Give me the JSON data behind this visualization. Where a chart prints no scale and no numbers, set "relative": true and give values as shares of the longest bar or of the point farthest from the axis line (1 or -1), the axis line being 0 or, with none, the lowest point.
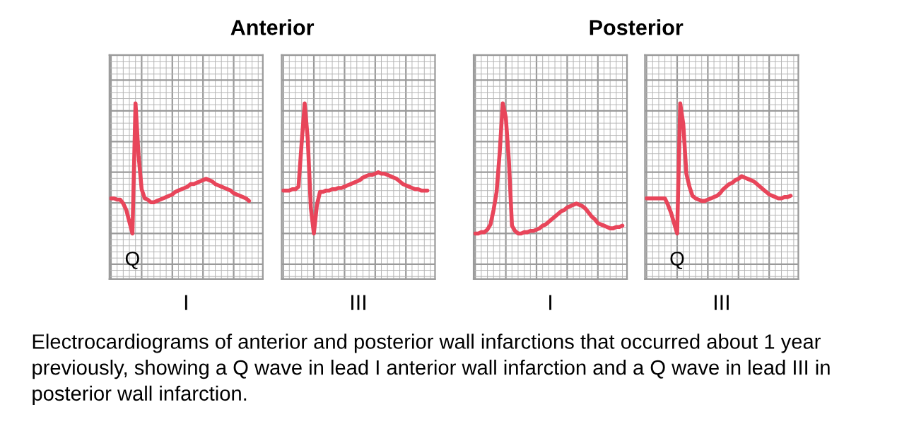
{
  "chart_data": [
    {
      "type": "line",
      "relative": true,
      "title": "Anterior",
      "xlabel": "I",
      "color": "#e8455a",
      "grid": true,
      "line_style": "solid",
      "categories": [
        null,
        null,
        null,
        null,
        null,
        null,
        null,
        null,
        null,
        null,
        null,
        null,
        null,
        null,
        null,
        null,
        null,
        null,
        null,
        null,
        null,
        null,
        null,
        null,
        null,
        null,
        null,
        null,
        null,
        null,
        null,
        null,
        null,
        null,
        null,
        null,
        null,
        null,
        null,
        null,
        null,
        null,
        null,
        null,
        null,
        null
      ],
      "values": [
        0.27,
        0.27,
        0.26,
        0.26,
        0.23,
        0.18,
        0.09,
        0,
        1,
        0.6,
        0.34,
        0.27,
        0.26,
        0.24,
        0.24,
        0.25,
        0.26,
        0.27,
        0.28,
        0.29,
        0.3,
        0.32,
        0.33,
        0.34,
        0.35,
        0.36,
        0.38,
        0.38,
        0.39,
        0.4,
        0.41,
        0.42,
        0.41,
        0.4,
        0.38,
        0.37,
        0.36,
        0.35,
        0.34,
        0.33,
        0.31,
        0.3,
        0.29,
        0.28,
        0.27,
        0.25
      ],
      "annotations": [
        {
          "text": "Q",
          "y": 0
        }
      ]
    },
    {
      "type": "line",
      "relative": true,
      "xlabel": "III",
      "color": "#e8455a",
      "grid": true,
      "line_style": "solid",
      "categories": [
        null,
        null,
        null,
        null,
        null,
        null,
        null,
        null,
        null,
        null,
        null,
        null,
        null,
        null,
        null,
        null,
        null,
        null,
        null,
        null,
        null,
        null,
        null,
        null,
        null,
        null,
        null,
        null,
        null,
        null,
        null,
        null,
        null,
        null,
        null,
        null,
        null,
        null,
        null,
        null,
        null,
        null,
        null,
        null,
        null,
        null,
        null,
        null
      ],
      "values": [
        0.33,
        0.33,
        0.33,
        0.34,
        0.34,
        0.36,
        0.69,
        1,
        0.73,
        0.2,
        0,
        0.22,
        0.32,
        0.32,
        0.33,
        0.33,
        0.34,
        0.34,
        0.35,
        0.35,
        0.36,
        0.37,
        0.38,
        0.39,
        0.4,
        0.41,
        0.43,
        0.44,
        0.45,
        0.45,
        0.46,
        0.47,
        0.46,
        0.46,
        0.45,
        0.44,
        0.43,
        0.42,
        0.4,
        0.38,
        0.37,
        0.36,
        0.35,
        0.34,
        0.34,
        0.33,
        0.33,
        0.33
      ]
    },
    {
      "type": "line",
      "relative": true,
      "title": "Posterior",
      "xlabel": "I",
      "color": "#e8455a",
      "grid": true,
      "line_style": "solid",
      "categories": [
        null,
        null,
        null,
        null,
        null,
        null,
        null,
        null,
        null,
        null,
        null,
        null,
        null,
        null,
        null,
        null,
        null,
        null,
        null,
        null,
        null,
        null,
        null,
        null,
        null,
        null,
        null,
        null,
        null,
        null,
        null,
        null,
        null,
        null,
        null,
        null,
        null,
        null,
        null,
        null,
        null,
        null,
        null,
        null,
        null,
        null,
        null,
        null,
        null
      ],
      "values": [
        0,
        0,
        0.01,
        0.01,
        0.03,
        0.07,
        0.18,
        0.32,
        0.62,
        1,
        0.89,
        0.56,
        0.06,
        0.02,
        0,
        0,
        0.01,
        0.01,
        0.02,
        0.02,
        0.03,
        0.04,
        0.06,
        0.07,
        0.09,
        0.11,
        0.13,
        0.15,
        0.17,
        0.18,
        0.2,
        0.21,
        0.22,
        0.23,
        0.22,
        0.21,
        0.19,
        0.16,
        0.13,
        0.11,
        0.08,
        0.07,
        0.06,
        0.05,
        0.04,
        0.04,
        0.05,
        0.05,
        0.06
      ]
    },
    {
      "type": "line",
      "relative": true,
      "xlabel": "III",
      "color": "#e8455a",
      "grid": true,
      "line_style": "solid",
      "categories": [
        null,
        null,
        null,
        null,
        null,
        null,
        null,
        null,
        null,
        null,
        null,
        null,
        null,
        null,
        null,
        null,
        null,
        null,
        null,
        null,
        null,
        null,
        null,
        null,
        null,
        null,
        null,
        null,
        null,
        null,
        null,
        null,
        null,
        null,
        null,
        null,
        null,
        null,
        null,
        null,
        null,
        null,
        null,
        null,
        null,
        null,
        null,
        null
      ],
      "values": [
        0.27,
        0.27,
        0.27,
        0.27,
        0.27,
        0.27,
        0.27,
        0.22,
        0.16,
        0.08,
        0,
        1,
        0.84,
        0.46,
        0.36,
        0.29,
        0.27,
        0.26,
        0.25,
        0.25,
        0.26,
        0.27,
        0.28,
        0.29,
        0.31,
        0.34,
        0.36,
        0.38,
        0.39,
        0.41,
        0.42,
        0.44,
        0.43,
        0.42,
        0.41,
        0.4,
        0.38,
        0.36,
        0.34,
        0.32,
        0.3,
        0.29,
        0.28,
        0.27,
        0.27,
        0.28,
        0.28,
        0.29
      ],
      "annotations": [
        {
          "text": "Q",
          "y": 0
        },
        "Electrocardiograms of anterior and posterior wall infarctions that occurred about 1 year previously, showing a Q wave in lead I anterior wall infarction and a Q wave in lead III in posterior wall infarction."
      ]
    }
  ]
}
